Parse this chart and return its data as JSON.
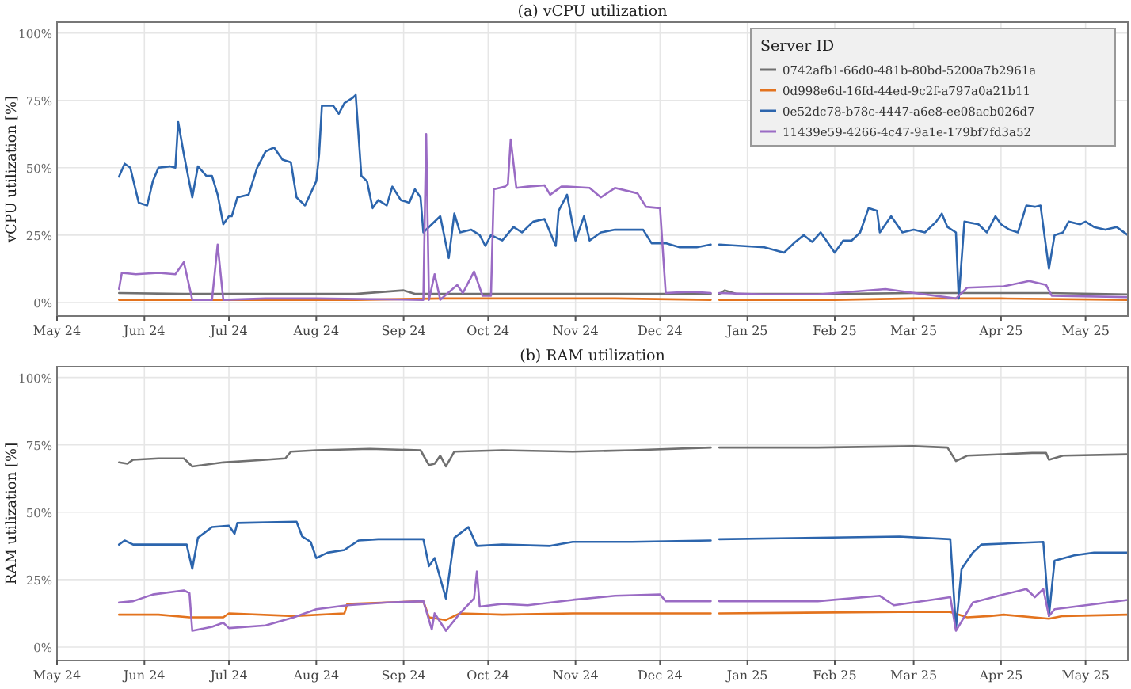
{
  "chart_data": [
    {
      "type": "line",
      "title": "(a) vCPU utilization",
      "ylabel": "vCPU utilization [%]",
      "legend_title": "Server ID",
      "legend": "top right",
      "grid": true,
      "xlim": [
        "2024-05-01",
        "2025-05-16"
      ],
      "xticks": [
        {
          "value": "2024-05-01",
          "label": "May 24"
        },
        {
          "value": "2024-06-01",
          "label": "Jun 24"
        },
        {
          "value": "2024-07-01",
          "label": "Jul 24"
        },
        {
          "value": "2024-08-01",
          "label": "Aug 24"
        },
        {
          "value": "2024-09-01",
          "label": "Sep 24"
        },
        {
          "value": "2024-10-01",
          "label": "Oct 24"
        },
        {
          "value": "2024-11-01",
          "label": "Nov 24"
        },
        {
          "value": "2024-12-01",
          "label": "Dec 24"
        },
        {
          "value": "2025-01-01",
          "label": "Jan 25"
        },
        {
          "value": "2025-02-01",
          "label": "Feb 25"
        },
        {
          "value": "2025-03-01",
          "label": "Mar 25"
        },
        {
          "value": "2025-04-01",
          "label": "Apr 25"
        },
        {
          "value": "2025-05-01",
          "label": "May 25"
        }
      ],
      "ylim": [
        -5,
        104
      ],
      "yticks": [
        {
          "value": 0,
          "label": "0%"
        },
        {
          "value": 25,
          "label": "25%"
        },
        {
          "value": 50,
          "label": "50%"
        },
        {
          "value": 75,
          "label": "75%"
        },
        {
          "value": 100,
          "label": "100%"
        }
      ],
      "series": [
        {
          "name": "0742afb1-66d0-481b-80bd-5200a7b2961a",
          "color": "#707070",
          "x": [
            "2024-05-23",
            "2024-06-15",
            "2024-07-14",
            "2024-08-15",
            "2024-09-01",
            "2024-09-05",
            "2024-10-01",
            "2024-11-01",
            "2024-12-01",
            "2024-12-19",
            "2024-12-20",
            "2024-12-22",
            "2024-12-24",
            "2024-12-28",
            "2025-02-01",
            "2025-03-01",
            "2025-04-01",
            "2025-04-18",
            "2025-05-16"
          ],
          "values": [
            3.5,
            3.2,
            3.2,
            3.2,
            4.5,
            3.2,
            3.2,
            3.2,
            3.2,
            3.2,
            null,
            3.2,
            4.5,
            3.2,
            3.2,
            3.5,
            3.5,
            3.5,
            3
          ]
        },
        {
          "name": "0d998e6d-16fd-44ed-9c2f-a797a0a21b11",
          "color": "#e3731e",
          "x": [
            "2024-05-23",
            "2024-06-15",
            "2024-07-14",
            "2024-08-15",
            "2024-09-15",
            "2024-10-15",
            "2024-11-15",
            "2024-12-19",
            "2024-12-20",
            "2024-12-22",
            "2025-02-01",
            "2025-03-01",
            "2025-04-01",
            "2025-05-16"
          ],
          "values": [
            1,
            1,
            1,
            1,
            1.5,
            1.5,
            1.5,
            1,
            null,
            1,
            1,
            1.5,
            1.5,
            1
          ]
        },
        {
          "name": "0e52dc78-b78c-4447-a6e8-ee08acb026d7",
          "color": "#2c65ad",
          "x": [
            "2024-05-23",
            "2024-05-25",
            "2024-05-27",
            "2024-05-30",
            "2024-06-02",
            "2024-06-04",
            "2024-06-06",
            "2024-06-10",
            "2024-06-12",
            "2024-06-13",
            "2024-06-15",
            "2024-06-18",
            "2024-06-20",
            "2024-06-23",
            "2024-06-25",
            "2024-06-27",
            "2024-06-29",
            "2024-07-01",
            "2024-07-02",
            "2024-07-04",
            "2024-07-08",
            "2024-07-11",
            "2024-07-14",
            "2024-07-17",
            "2024-07-20",
            "2024-07-23",
            "2024-07-25",
            "2024-07-28",
            "2024-08-01",
            "2024-08-02",
            "2024-08-03",
            "2024-08-07",
            "2024-08-09",
            "2024-08-11",
            "2024-08-14",
            "2024-08-15",
            "2024-08-17",
            "2024-08-19",
            "2024-08-21",
            "2024-08-23",
            "2024-08-26",
            "2024-08-28",
            "2024-08-31",
            "2024-09-03",
            "2024-09-05",
            "2024-09-07",
            "2024-09-08",
            "2024-09-11",
            "2024-09-14",
            "2024-09-17",
            "2024-09-19",
            "2024-09-21",
            "2024-09-25",
            "2024-09-28",
            "2024-09-30",
            "2024-10-02",
            "2024-10-06",
            "2024-10-10",
            "2024-10-13",
            "2024-10-17",
            "2024-10-21",
            "2024-10-25",
            "2024-10-26",
            "2024-10-29",
            "2024-11-01",
            "2024-11-04",
            "2024-11-06",
            "2024-11-10",
            "2024-11-15",
            "2024-11-21",
            "2024-11-25",
            "2024-11-28",
            "2024-12-03",
            "2024-12-08",
            "2024-12-14",
            "2024-12-19",
            "2024-12-20",
            "2024-12-22",
            "2024-12-30",
            "2025-01-07",
            "2025-01-14",
            "2025-01-18",
            "2025-01-21",
            "2025-01-24",
            "2025-01-27",
            "2025-02-01",
            "2025-02-04",
            "2025-02-07",
            "2025-02-10",
            "2025-02-13",
            "2025-02-16",
            "2025-02-17",
            "2025-02-21",
            "2025-02-25",
            "2025-03-01",
            "2025-03-05",
            "2025-03-09",
            "2025-03-11",
            "2025-03-13",
            "2025-03-16",
            "2025-03-17",
            "2025-03-19",
            "2025-03-24",
            "2025-03-27",
            "2025-03-30",
            "2025-04-01",
            "2025-04-04",
            "2025-04-07",
            "2025-04-10",
            "2025-04-13",
            "2025-04-15",
            "2025-04-18",
            "2025-04-20",
            "2025-04-23",
            "2025-04-25",
            "2025-04-29",
            "2025-05-01",
            "2025-05-04",
            "2025-05-08",
            "2025-05-12",
            "2025-05-16"
          ],
          "values": [
            46.7,
            51.5,
            50,
            37,
            36,
            45,
            50,
            50.5,
            50,
            67,
            55,
            39,
            50.5,
            47,
            47,
            40,
            29,
            32,
            32,
            39,
            40,
            50,
            56,
            57.5,
            53,
            52,
            39,
            36,
            45,
            55,
            73,
            73,
            70,
            74,
            76,
            77,
            47,
            45,
            35,
            38,
            36,
            43,
            38,
            37,
            42,
            39,
            26,
            29,
            32,
            16.5,
            33,
            26,
            27,
            25,
            21,
            25,
            23,
            28,
            26,
            30,
            31,
            21,
            34,
            40,
            23,
            32,
            23,
            26,
            27,
            27,
            27,
            22,
            22,
            20.5,
            20.5,
            21.5,
            null,
            21.5,
            21,
            20.5,
            18.5,
            22.5,
            25,
            22.5,
            26,
            18.5,
            23,
            23,
            26,
            35,
            34,
            26,
            32,
            26,
            27,
            26,
            30,
            33,
            28,
            26,
            1.5,
            30,
            29,
            26,
            32,
            29,
            27,
            26,
            36,
            35.5,
            36,
            12.5,
            25,
            26,
            30,
            29,
            30,
            28,
            27,
            28,
            25
          ]
        },
        {
          "name": "11439e59-4266-4c47-9a1e-179bf7fd3a52",
          "color": "#9a6bc4",
          "x": [
            "2024-05-23",
            "2024-05-24",
            "2024-05-29",
            "2024-06-06",
            "2024-06-12",
            "2024-06-15",
            "2024-06-18",
            "2024-06-25",
            "2024-06-27",
            "2024-06-29",
            "2024-07-14",
            "2024-08-01",
            "2024-09-08",
            "2024-09-09",
            "2024-09-10",
            "2024-09-12",
            "2024-09-14",
            "2024-09-20",
            "2024-09-22",
            "2024-09-26",
            "2024-09-29",
            "2024-10-02",
            "2024-10-03",
            "2024-10-07",
            "2024-10-08",
            "2024-10-09",
            "2024-10-11",
            "2024-10-15",
            "2024-10-21",
            "2024-10-23",
            "2024-10-27",
            "2024-10-29",
            "2024-11-06",
            "2024-11-10",
            "2024-11-15",
            "2024-11-23",
            "2024-11-26",
            "2024-12-01",
            "2024-12-03",
            "2024-12-12",
            "2024-12-19",
            "2024-12-20",
            "2024-12-22",
            "2025-01-07",
            "2025-01-26",
            "2025-02-19",
            "2025-03-05",
            "2025-03-16",
            "2025-03-20",
            "2025-04-02",
            "2025-04-11",
            "2025-04-17",
            "2025-04-19",
            "2025-05-16"
          ],
          "values": [
            5,
            11,
            10.5,
            11,
            10.5,
            15,
            1,
            1,
            21.5,
            1,
            1.5,
            1.5,
            1,
            62.5,
            1,
            10.5,
            1,
            6.5,
            3.5,
            11.5,
            2.5,
            2.5,
            42,
            43,
            44,
            60.5,
            42.5,
            43,
            43.5,
            40,
            43,
            43,
            42.5,
            39,
            42.5,
            40.5,
            35.5,
            35,
            3.5,
            4,
            3.5,
            null,
            3.5,
            3,
            3,
            5,
            3,
            1.5,
            5.5,
            6,
            8,
            6.5,
            2.5,
            2
          ]
        }
      ]
    },
    {
      "type": "line",
      "title": "(b) RAM utilization",
      "ylabel": "RAM utilization [%]",
      "grid": true,
      "xlim": [
        "2024-05-01",
        "2025-05-16"
      ],
      "xticks": [
        {
          "value": "2024-05-01",
          "label": "May 24"
        },
        {
          "value": "2024-06-01",
          "label": "Jun 24"
        },
        {
          "value": "2024-07-01",
          "label": "Jul 24"
        },
        {
          "value": "2024-08-01",
          "label": "Aug 24"
        },
        {
          "value": "2024-09-01",
          "label": "Sep 24"
        },
        {
          "value": "2024-10-01",
          "label": "Oct 24"
        },
        {
          "value": "2024-11-01",
          "label": "Nov 24"
        },
        {
          "value": "2024-12-01",
          "label": "Dec 24"
        },
        {
          "value": "2025-01-01",
          "label": "Jan 25"
        },
        {
          "value": "2025-02-01",
          "label": "Feb 25"
        },
        {
          "value": "2025-03-01",
          "label": "Mar 25"
        },
        {
          "value": "2025-04-01",
          "label": "Apr 25"
        },
        {
          "value": "2025-05-01",
          "label": "May 25"
        }
      ],
      "ylim": [
        -5,
        104
      ],
      "yticks": [
        {
          "value": 0,
          "label": "0%"
        },
        {
          "value": 25,
          "label": "25%"
        },
        {
          "value": 50,
          "label": "50%"
        },
        {
          "value": 75,
          "label": "75%"
        },
        {
          "value": 100,
          "label": "100%"
        }
      ],
      "series": [
        {
          "color": "#707070",
          "x": [
            "2024-05-23",
            "2024-05-26",
            "2024-05-28",
            "2024-06-06",
            "2024-06-15",
            "2024-06-18",
            "2024-06-29",
            "2024-07-14",
            "2024-07-21",
            "2024-07-23",
            "2024-08-01",
            "2024-08-20",
            "2024-09-07",
            "2024-09-10",
            "2024-09-12",
            "2024-09-14",
            "2024-09-16",
            "2024-09-19",
            "2024-10-06",
            "2024-10-31",
            "2024-11-21",
            "2024-12-19",
            "2024-12-20",
            "2024-12-22",
            "2025-01-26",
            "2025-03-01",
            "2025-03-13",
            "2025-03-16",
            "2025-03-20",
            "2025-04-12",
            "2025-04-17",
            "2025-04-18",
            "2025-04-23",
            "2025-05-16"
          ],
          "values": [
            68.5,
            68,
            69.5,
            70,
            70,
            67,
            68.5,
            69.5,
            70,
            72.5,
            73,
            73.5,
            73,
            67.5,
            68,
            71,
            67,
            72.5,
            73,
            72.5,
            73,
            74,
            null,
            74,
            74,
            74.5,
            74,
            69,
            71,
            72,
            72,
            69.5,
            71,
            71.5
          ]
        },
        {
          "color": "#e3731e",
          "x": [
            "2024-05-23",
            "2024-06-06",
            "2024-06-17",
            "2024-06-29",
            "2024-07-01",
            "2024-07-24",
            "2024-08-11",
            "2024-08-12",
            "2024-09-08",
            "2024-09-10",
            "2024-09-16",
            "2024-09-21",
            "2024-10-06",
            "2024-10-31",
            "2024-12-19",
            "2024-12-20",
            "2024-12-22",
            "2025-02-24",
            "2025-03-14",
            "2025-03-20",
            "2025-03-28",
            "2025-04-02",
            "2025-04-18",
            "2025-04-23",
            "2025-05-16"
          ],
          "values": [
            12,
            12,
            11,
            11,
            12.5,
            11.5,
            12.5,
            16,
            17,
            11,
            10,
            12.5,
            12,
            12.5,
            12.5,
            null,
            12.5,
            13,
            13,
            11,
            11.5,
            12,
            10.5,
            11.5,
            12
          ]
        },
        {
          "color": "#2c65ad",
          "x": [
            "2024-05-23",
            "2024-05-25",
            "2024-05-28",
            "2024-06-16",
            "2024-06-18",
            "2024-06-20",
            "2024-06-25",
            "2024-07-01",
            "2024-07-03",
            "2024-07-04",
            "2024-07-25",
            "2024-07-27",
            "2024-07-30",
            "2024-08-01",
            "2024-08-05",
            "2024-08-11",
            "2024-08-16",
            "2024-08-23",
            "2024-09-08",
            "2024-09-10",
            "2024-09-12",
            "2024-09-16",
            "2024-09-19",
            "2024-09-24",
            "2024-09-27",
            "2024-10-06",
            "2024-10-23",
            "2024-10-31",
            "2024-11-21",
            "2024-12-19",
            "2024-12-20",
            "2024-12-22",
            "2025-02-24",
            "2025-03-14",
            "2025-03-16",
            "2025-03-18",
            "2025-03-22",
            "2025-03-25",
            "2025-04-16",
            "2025-04-18",
            "2025-04-20",
            "2025-04-27",
            "2025-05-04",
            "2025-05-16"
          ],
          "values": [
            38,
            39.5,
            38,
            38,
            29,
            40.5,
            44.5,
            45,
            42,
            46,
            46.5,
            41,
            39,
            33,
            35,
            36,
            39.5,
            40,
            40,
            30,
            33,
            18,
            40.5,
            44.5,
            37.5,
            38,
            37.5,
            39,
            39,
            39.5,
            null,
            40,
            41,
            40,
            7,
            29,
            35,
            38,
            39,
            11.5,
            32,
            34,
            35,
            35
          ]
        },
        {
          "color": "#9a6bc4",
          "x": [
            "2024-05-23",
            "2024-05-28",
            "2024-06-04",
            "2024-06-15",
            "2024-06-17",
            "2024-06-18",
            "2024-06-25",
            "2024-06-29",
            "2024-07-01",
            "2024-07-14",
            "2024-07-24",
            "2024-08-01",
            "2024-08-12",
            "2024-08-26",
            "2024-09-08",
            "2024-09-11",
            "2024-09-12",
            "2024-09-16",
            "2024-09-21",
            "2024-09-26",
            "2024-09-27",
            "2024-09-28",
            "2024-10-06",
            "2024-10-15",
            "2024-10-31",
            "2024-11-15",
            "2024-12-01",
            "2024-12-03",
            "2024-12-19",
            "2024-12-20",
            "2024-12-22",
            "2025-01-26",
            "2025-02-17",
            "2025-02-22",
            "2025-03-14",
            "2025-03-16",
            "2025-03-22",
            "2025-04-02",
            "2025-04-10",
            "2025-04-13",
            "2025-04-16",
            "2025-04-18",
            "2025-04-20",
            "2025-05-16"
          ],
          "values": [
            16.5,
            17,
            19.5,
            21,
            20,
            6,
            7.5,
            9,
            7,
            8,
            11,
            14,
            15.5,
            16.5,
            17,
            6.5,
            12.5,
            6,
            12.5,
            18,
            28,
            15,
            16,
            15.5,
            17.5,
            19,
            19.5,
            17,
            17,
            null,
            17,
            17,
            19,
            15.5,
            18.5,
            6,
            16.5,
            19.5,
            21.5,
            18.5,
            21.5,
            11.5,
            14,
            17.5
          ]
        }
      ]
    }
  ]
}
